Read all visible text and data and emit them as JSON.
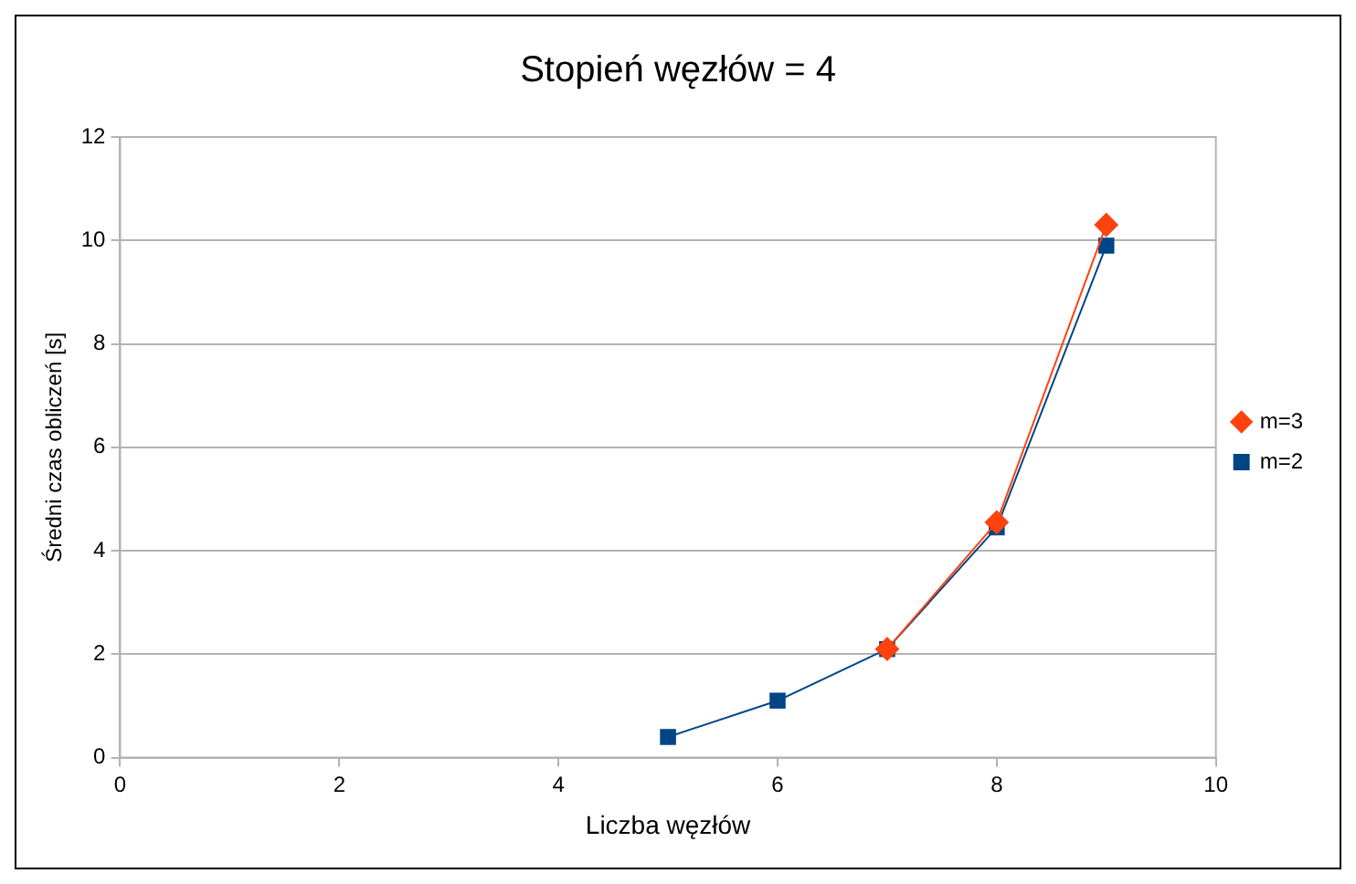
{
  "chart_data": {
    "type": "line",
    "title": "Stopień węzłów = 4",
    "xlabel": "Liczba węzłów",
    "ylabel": "Średni czas obliczeń [s]",
    "xlim": [
      0,
      10
    ],
    "xticks": [
      0,
      2,
      4,
      6,
      8,
      10
    ],
    "ylim": [
      0,
      12
    ],
    "yticks": [
      0,
      2,
      4,
      6,
      8,
      10,
      12
    ],
    "grid": "y",
    "legend": "right",
    "series": [
      {
        "name": "m=2",
        "color": "#004586",
        "marker": "square",
        "x": [
          5,
          6,
          7,
          8,
          9
        ],
        "values": [
          0.4,
          1.1,
          2.1,
          4.45,
          9.9
        ]
      },
      {
        "name": "m=3",
        "color": "#ff420e",
        "marker": "diamond",
        "x": [
          7,
          8,
          9
        ],
        "values": [
          2.1,
          4.55,
          10.3
        ]
      }
    ]
  }
}
